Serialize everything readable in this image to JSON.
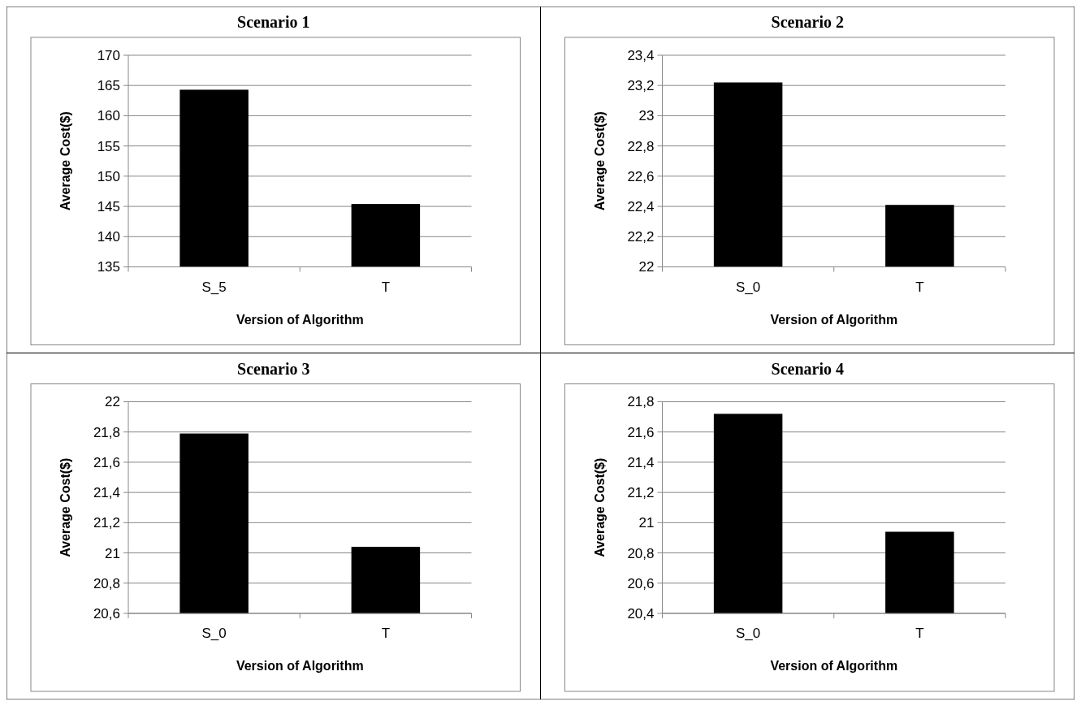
{
  "chart_data": [
    {
      "type": "bar",
      "title": "Scenario 1",
      "xlabel": "Version of Algorithm",
      "ylabel": "Average Cost($)",
      "categories": [
        "S_5",
        "T"
      ],
      "values": [
        164.3,
        145.4
      ],
      "color": "#000000",
      "ylim": [
        135,
        170
      ],
      "yticks": [
        135,
        140,
        145,
        150,
        155,
        160,
        165,
        170
      ],
      "grid": "y"
    },
    {
      "type": "bar",
      "title": "Scenario 2",
      "xlabel": "Version of Algorithm",
      "ylabel": "Average Cost($)",
      "categories": [
        "S_0",
        "T"
      ],
      "values": [
        23.22,
        22.41
      ],
      "color": "#000000",
      "ylim": [
        22,
        23.4
      ],
      "yticks": [
        22,
        {
          "value": 22.2,
          "label": "22,2"
        },
        {
          "value": 22.4,
          "label": "22,4"
        },
        {
          "value": 22.6,
          "label": "22,6"
        },
        {
          "value": 22.8,
          "label": "22,8"
        },
        23,
        {
          "value": 23.2,
          "label": "23,2"
        },
        {
          "value": 23.4,
          "label": "23,4"
        }
      ],
      "grid": "y"
    },
    {
      "type": "bar",
      "title": "Scenario 3",
      "xlabel": "Version of Algorithm",
      "ylabel": "Average Cost($)",
      "categories": [
        "S_0",
        "T"
      ],
      "values": [
        21.79,
        21.04
      ],
      "color": "#000000",
      "ylim": [
        20.6,
        22
      ],
      "yticks": [
        {
          "value": 20.6,
          "label": "20,6"
        },
        {
          "value": 20.8,
          "label": "20,8"
        },
        21,
        {
          "value": 21.2,
          "label": "21,2"
        },
        {
          "value": 21.4,
          "label": "21,4"
        },
        {
          "value": 21.6,
          "label": "21,6"
        },
        {
          "value": 21.8,
          "label": "21,8"
        },
        22
      ],
      "grid": "y"
    },
    {
      "type": "bar",
      "title": "Scenario 4",
      "xlabel": "Version of Algorithm",
      "ylabel": "Average Cost($)",
      "categories": [
        "S_0",
        "T"
      ],
      "values": [
        21.72,
        20.94
      ],
      "color": "#000000",
      "ylim": [
        20.4,
        21.8
      ],
      "yticks": [
        {
          "value": 20.4,
          "label": "20,4"
        },
        {
          "value": 20.6,
          "label": "20,6"
        },
        {
          "value": 20.8,
          "label": "20,8"
        },
        21,
        {
          "value": 21.2,
          "label": "21,2"
        },
        {
          "value": 21.4,
          "label": "21,4"
        },
        {
          "value": 21.6,
          "label": "21,6"
        },
        {
          "value": 21.8,
          "label": "21,8"
        }
      ],
      "grid": "y"
    }
  ]
}
